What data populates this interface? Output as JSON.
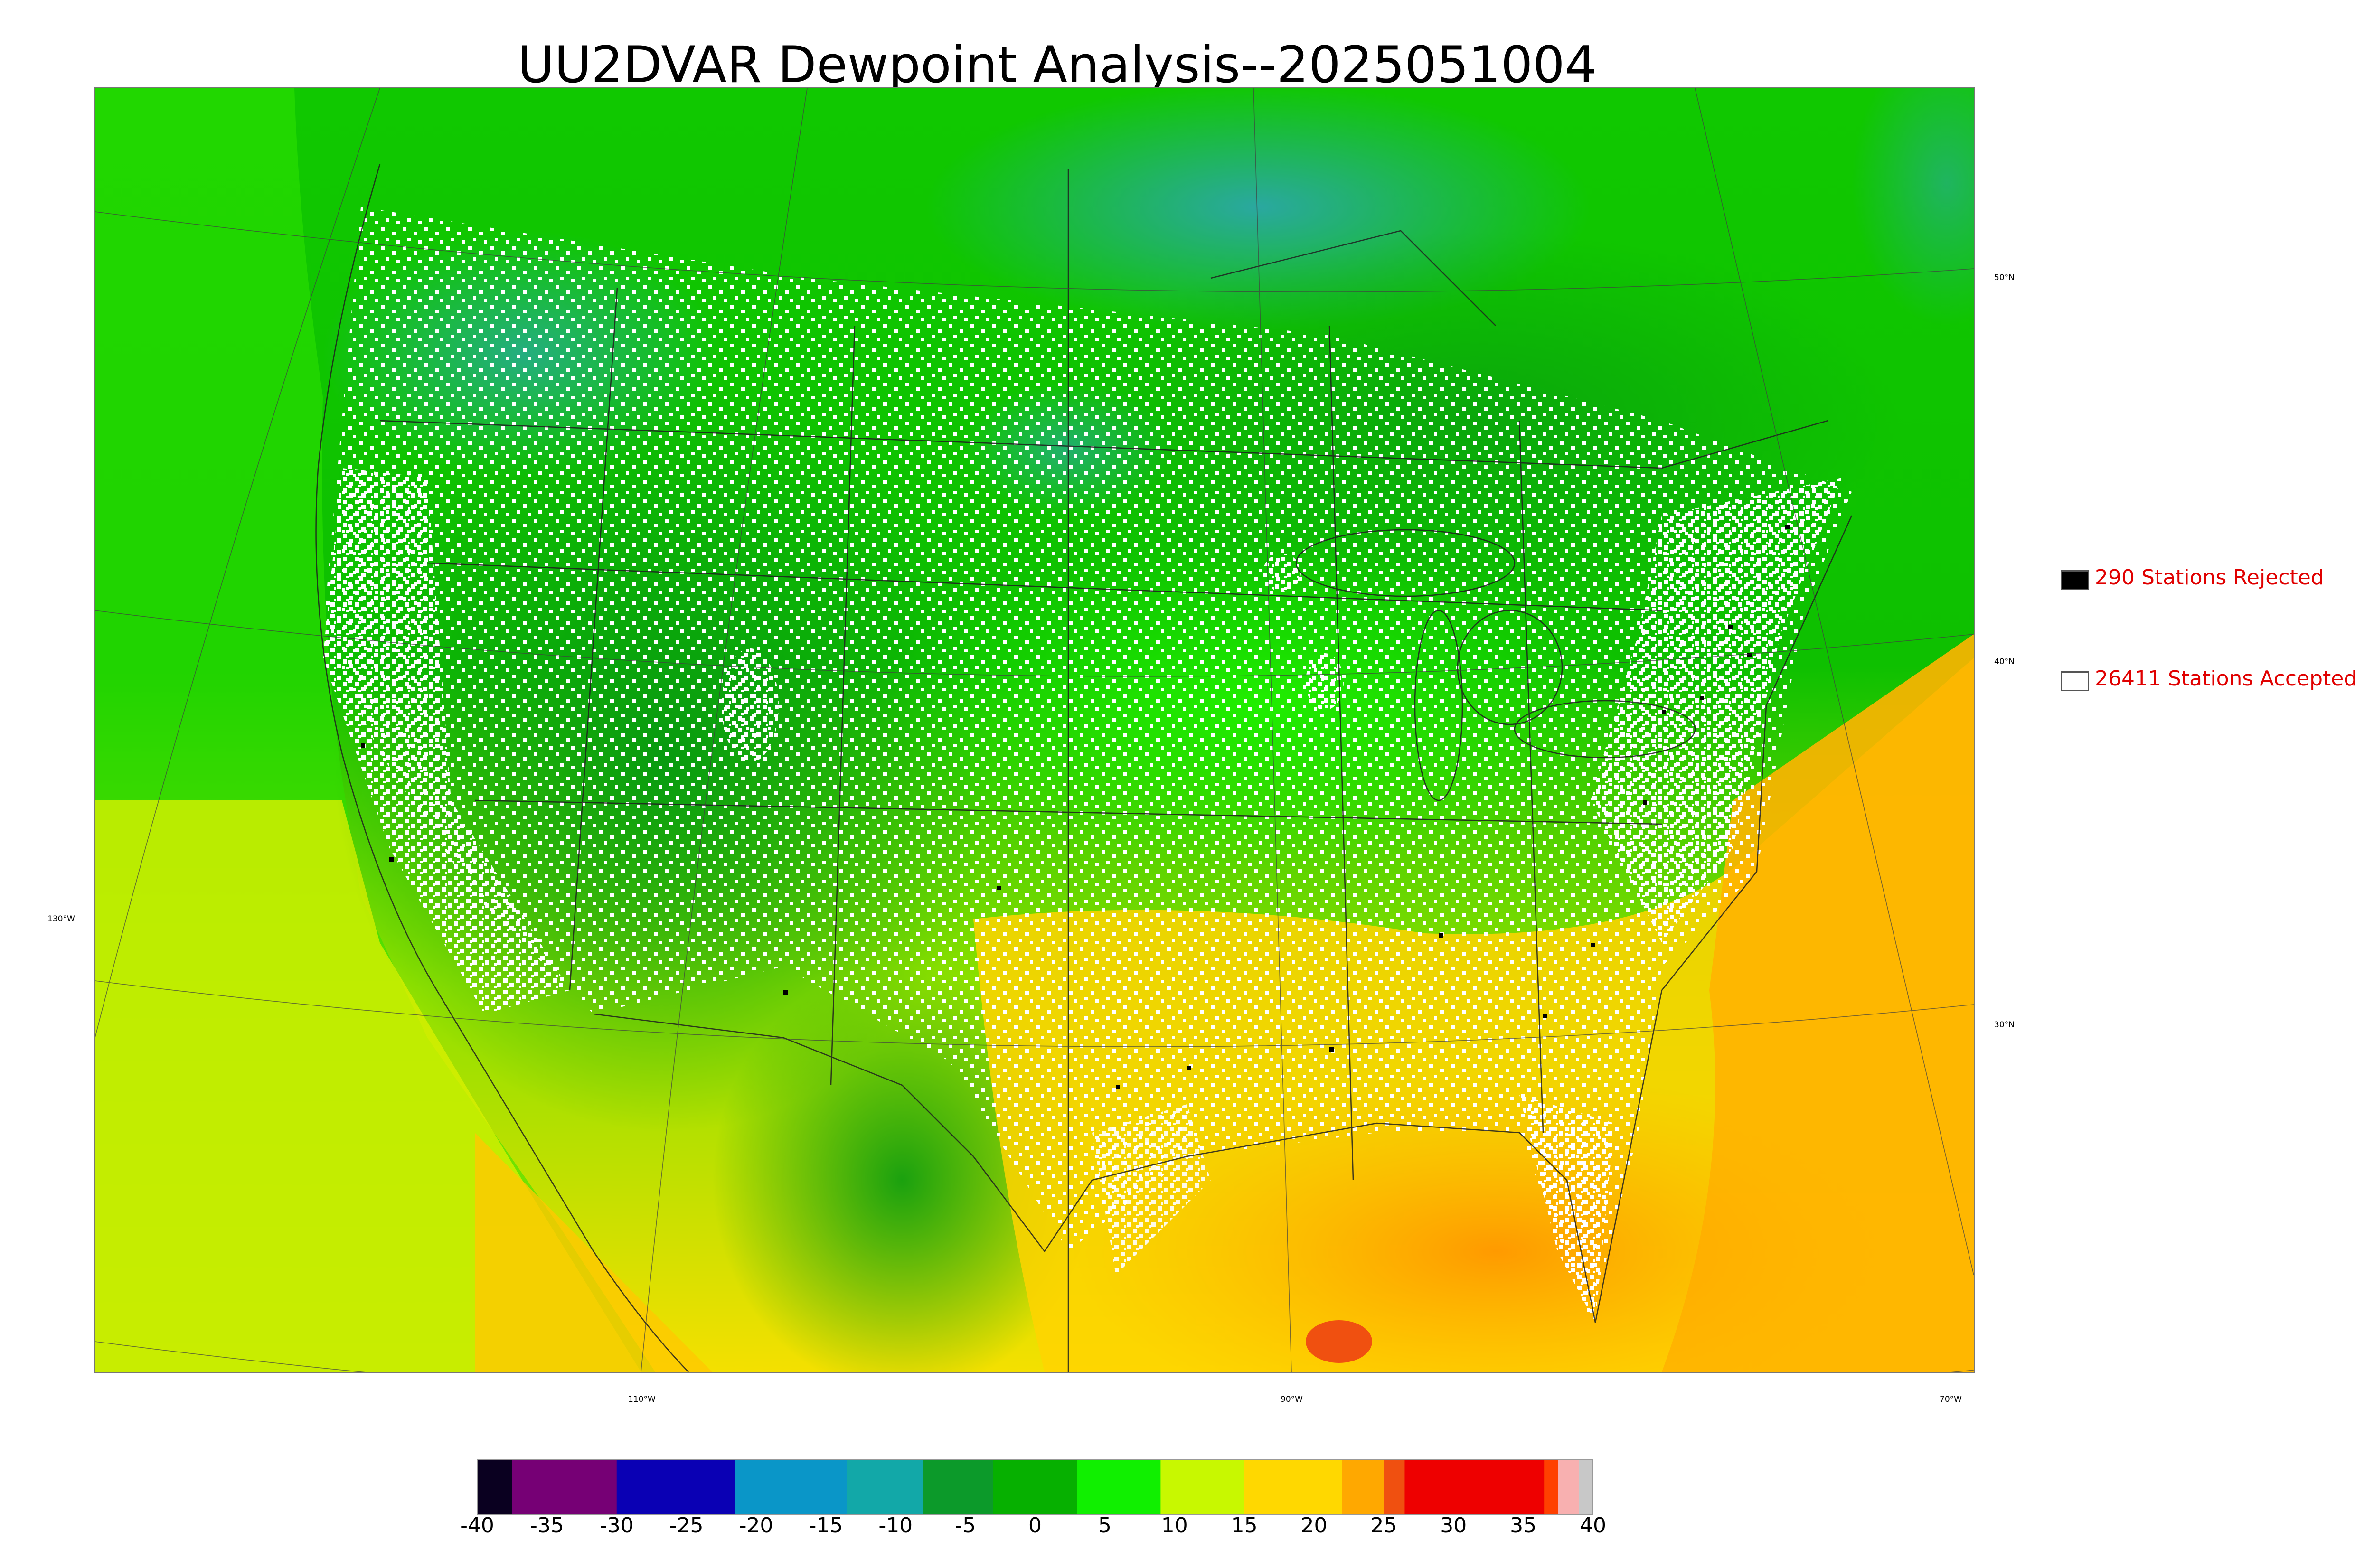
{
  "title": "UU2DVAR Dewpoint Analysis--2025051004",
  "map": {
    "latitude_labels": [
      "50°N",
      "40°N",
      "30°N"
    ],
    "longitude_labels": [
      "130°W",
      "110°W",
      "90°W",
      "70°W"
    ]
  },
  "legend": [
    {
      "label": "290 Stations Rejected",
      "swatch_color": "#000000"
    },
    {
      "label": "26411 Stations Accepted",
      "swatch_color": "#ffffff"
    }
  ],
  "colorbar": {
    "ticks": [
      "-40",
      "-35",
      "-30",
      "-25",
      "-20",
      "-15",
      "-10",
      "-5",
      "0",
      "5",
      "10",
      "15",
      "20",
      "25",
      "30",
      "35",
      "40"
    ],
    "segments": [
      {
        "from": -40,
        "to": -37.5,
        "color": "#0a0020"
      },
      {
        "from": -37.5,
        "to": -30,
        "color": "#760075"
      },
      {
        "from": -30,
        "to": -21.5,
        "color": "#0a00b4"
      },
      {
        "from": -21.5,
        "to": -13.5,
        "color": "#0a96c8"
      },
      {
        "from": -13.5,
        "to": -8,
        "color": "#12a8a8"
      },
      {
        "from": -8,
        "to": -3,
        "color": "#0c9a2a"
      },
      {
        "from": -3,
        "to": 3,
        "color": "#06b000"
      },
      {
        "from": 3,
        "to": 9,
        "color": "#10f000"
      },
      {
        "from": 9,
        "to": 15,
        "color": "#c8f800"
      },
      {
        "from": 15,
        "to": 22,
        "color": "#ffd800"
      },
      {
        "from": 22,
        "to": 25,
        "color": "#ffa800"
      },
      {
        "from": 25,
        "to": 26.5,
        "color": "#f05010"
      },
      {
        "from": 26.5,
        "to": 36.5,
        "color": "#ee0000"
      },
      {
        "from": 36.5,
        "to": 37.5,
        "color": "#ff4000"
      },
      {
        "from": 37.5,
        "to": 39,
        "color": "#f8b0b0"
      },
      {
        "from": 39,
        "to": 40,
        "color": "#c8c8c8"
      }
    ]
  }
}
